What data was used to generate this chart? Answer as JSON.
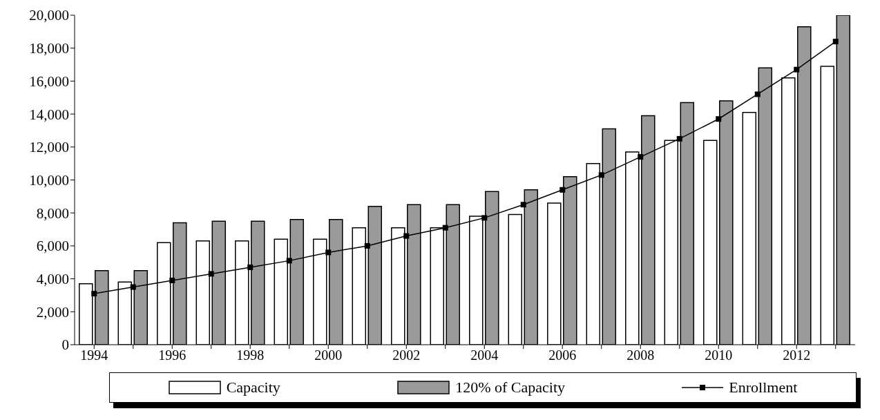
{
  "chart_data": {
    "type": "bar",
    "categories": [
      "1994",
      null,
      "1996",
      null,
      "1998",
      null,
      "2000",
      null,
      "2002",
      null,
      "2004",
      null,
      "2006",
      null,
      "2008",
      null,
      "2010",
      null,
      "2012",
      null
    ],
    "series": [
      {
        "name": "Capacity",
        "color": "#ffffff",
        "values": [
          3700,
          3800,
          6200,
          6300,
          6300,
          6400,
          6400,
          7100,
          7100,
          7100,
          7800,
          7900,
          8600,
          11000,
          11700,
          12400,
          12400,
          14100,
          16200,
          16900
        ]
      },
      {
        "name": "120% of Capacity",
        "color": "#9a9a9a",
        "values": [
          4500,
          4500,
          7400,
          7500,
          7500,
          7600,
          7600,
          8400,
          8500,
          8500,
          9300,
          9400,
          10200,
          13100,
          13900,
          14700,
          14800,
          16800,
          19300,
          20000
        ]
      },
      {
        "name": "Enrollment",
        "type": "line",
        "color": "#000000",
        "values": [
          3100,
          3500,
          3900,
          4300,
          4700,
          5100,
          5600,
          6000,
          6600,
          7100,
          7700,
          8500,
          9400,
          10300,
          11400,
          12500,
          13700,
          15200,
          16700,
          18400
        ]
      }
    ],
    "ylim": [
      0,
      20000
    ],
    "yticks": [
      0,
      {
        "value": 2000,
        "label": "2,000"
      },
      {
        "value": 4000,
        "label": "4,000"
      },
      {
        "value": 6000,
        "label": "6,000"
      },
      {
        "value": 8000,
        "label": "8,000"
      },
      {
        "value": 10000,
        "label": "10,000"
      },
      {
        "value": 12000,
        "label": "12,000"
      },
      {
        "value": 14000,
        "label": "14,000"
      },
      {
        "value": 16000,
        "label": "16,000"
      },
      {
        "value": 18000,
        "label": "18,000"
      },
      {
        "value": 20000,
        "label": "20,000"
      }
    ],
    "grid": false,
    "legend": "bottom",
    "marker": "square"
  }
}
